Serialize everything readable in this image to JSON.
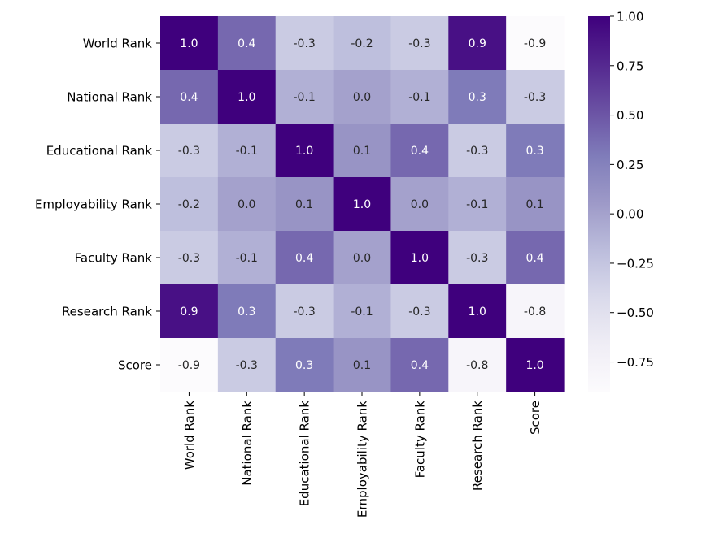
{
  "chart_data": {
    "type": "heatmap",
    "title": "",
    "xlabel": "",
    "ylabel": "",
    "rows": [
      "World Rank",
      "National Rank",
      "Educational Rank",
      "Employability Rank",
      "Faculty Rank",
      "Research Rank",
      "Score"
    ],
    "cols": [
      "World Rank",
      "National Rank",
      "Educational Rank",
      "Employability Rank",
      "Faculty Rank",
      "Research Rank",
      "Score"
    ],
    "values": [
      [
        1.0,
        0.4,
        -0.3,
        -0.2,
        -0.3,
        0.9,
        -0.9
      ],
      [
        0.4,
        1.0,
        -0.1,
        0.0,
        -0.1,
        0.3,
        -0.3
      ],
      [
        -0.3,
        -0.1,
        1.0,
        0.1,
        0.4,
        -0.3,
        0.3
      ],
      [
        -0.2,
        0.0,
        0.1,
        1.0,
        0.0,
        -0.1,
        0.1
      ],
      [
        -0.3,
        -0.1,
        0.4,
        0.0,
        1.0,
        -0.3,
        0.4
      ],
      [
        0.9,
        0.3,
        -0.3,
        -0.1,
        -0.3,
        1.0,
        -0.8
      ],
      [
        -0.9,
        -0.3,
        0.3,
        0.1,
        0.4,
        -0.8,
        1.0
      ]
    ],
    "value_format_decimals": 1,
    "colorbar": {
      "colormap": "Purples",
      "min": -0.9,
      "max": 1.0,
      "ticks": [
        1.0,
        0.75,
        0.5,
        0.25,
        0.0,
        -0.25,
        -0.5,
        -0.75
      ],
      "tick_labels": [
        "1.00",
        "0.75",
        "0.50",
        "0.25",
        "0.00",
        "−0.25",
        "−0.50",
        "−0.75"
      ]
    }
  }
}
